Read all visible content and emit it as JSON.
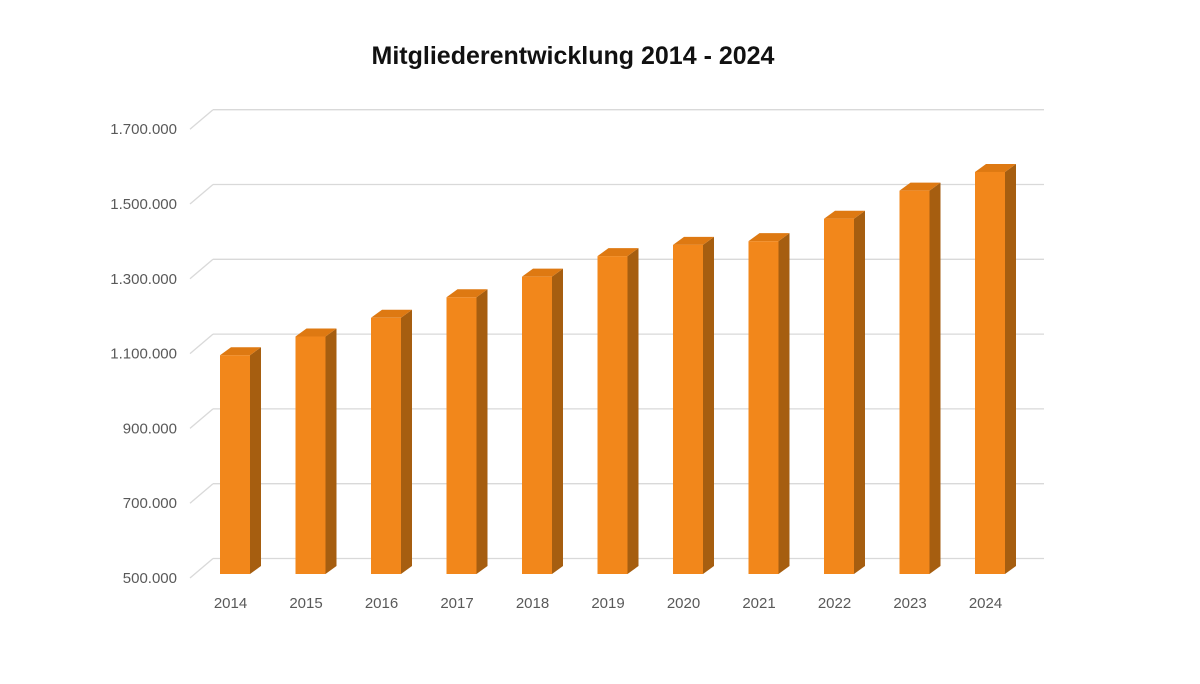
{
  "chart_data": {
    "type": "bar",
    "variant": "3d-column",
    "title": "Mitgliederentwicklung 2014 - 2024",
    "categories": [
      "2014",
      "2015",
      "2016",
      "2017",
      "2018",
      "2019",
      "2020",
      "2021",
      "2022",
      "2023",
      "2024"
    ],
    "values": [
      1085000,
      1135000,
      1185000,
      1240000,
      1295000,
      1350000,
      1380000,
      1390000,
      1450000,
      1525000,
      1575000
    ],
    "xlabel": "",
    "ylabel": "",
    "ylim": [
      500000,
      1700000
    ],
    "ytick_interval": 200000,
    "ytick_labels": [
      "500.000",
      "700.000",
      "900.000",
      "1.100.000",
      "1.300.000",
      "1.500.000",
      "1.700.000"
    ],
    "grid": true,
    "legend": "none",
    "colors": {
      "bar_front": "#F2871B",
      "bar_top": "#DE7912",
      "bar_side": "#A65E10",
      "gridline": "#D9D9D9",
      "axis_label": "#595959",
      "title": "#111111",
      "background": "#FFFFFF"
    }
  }
}
